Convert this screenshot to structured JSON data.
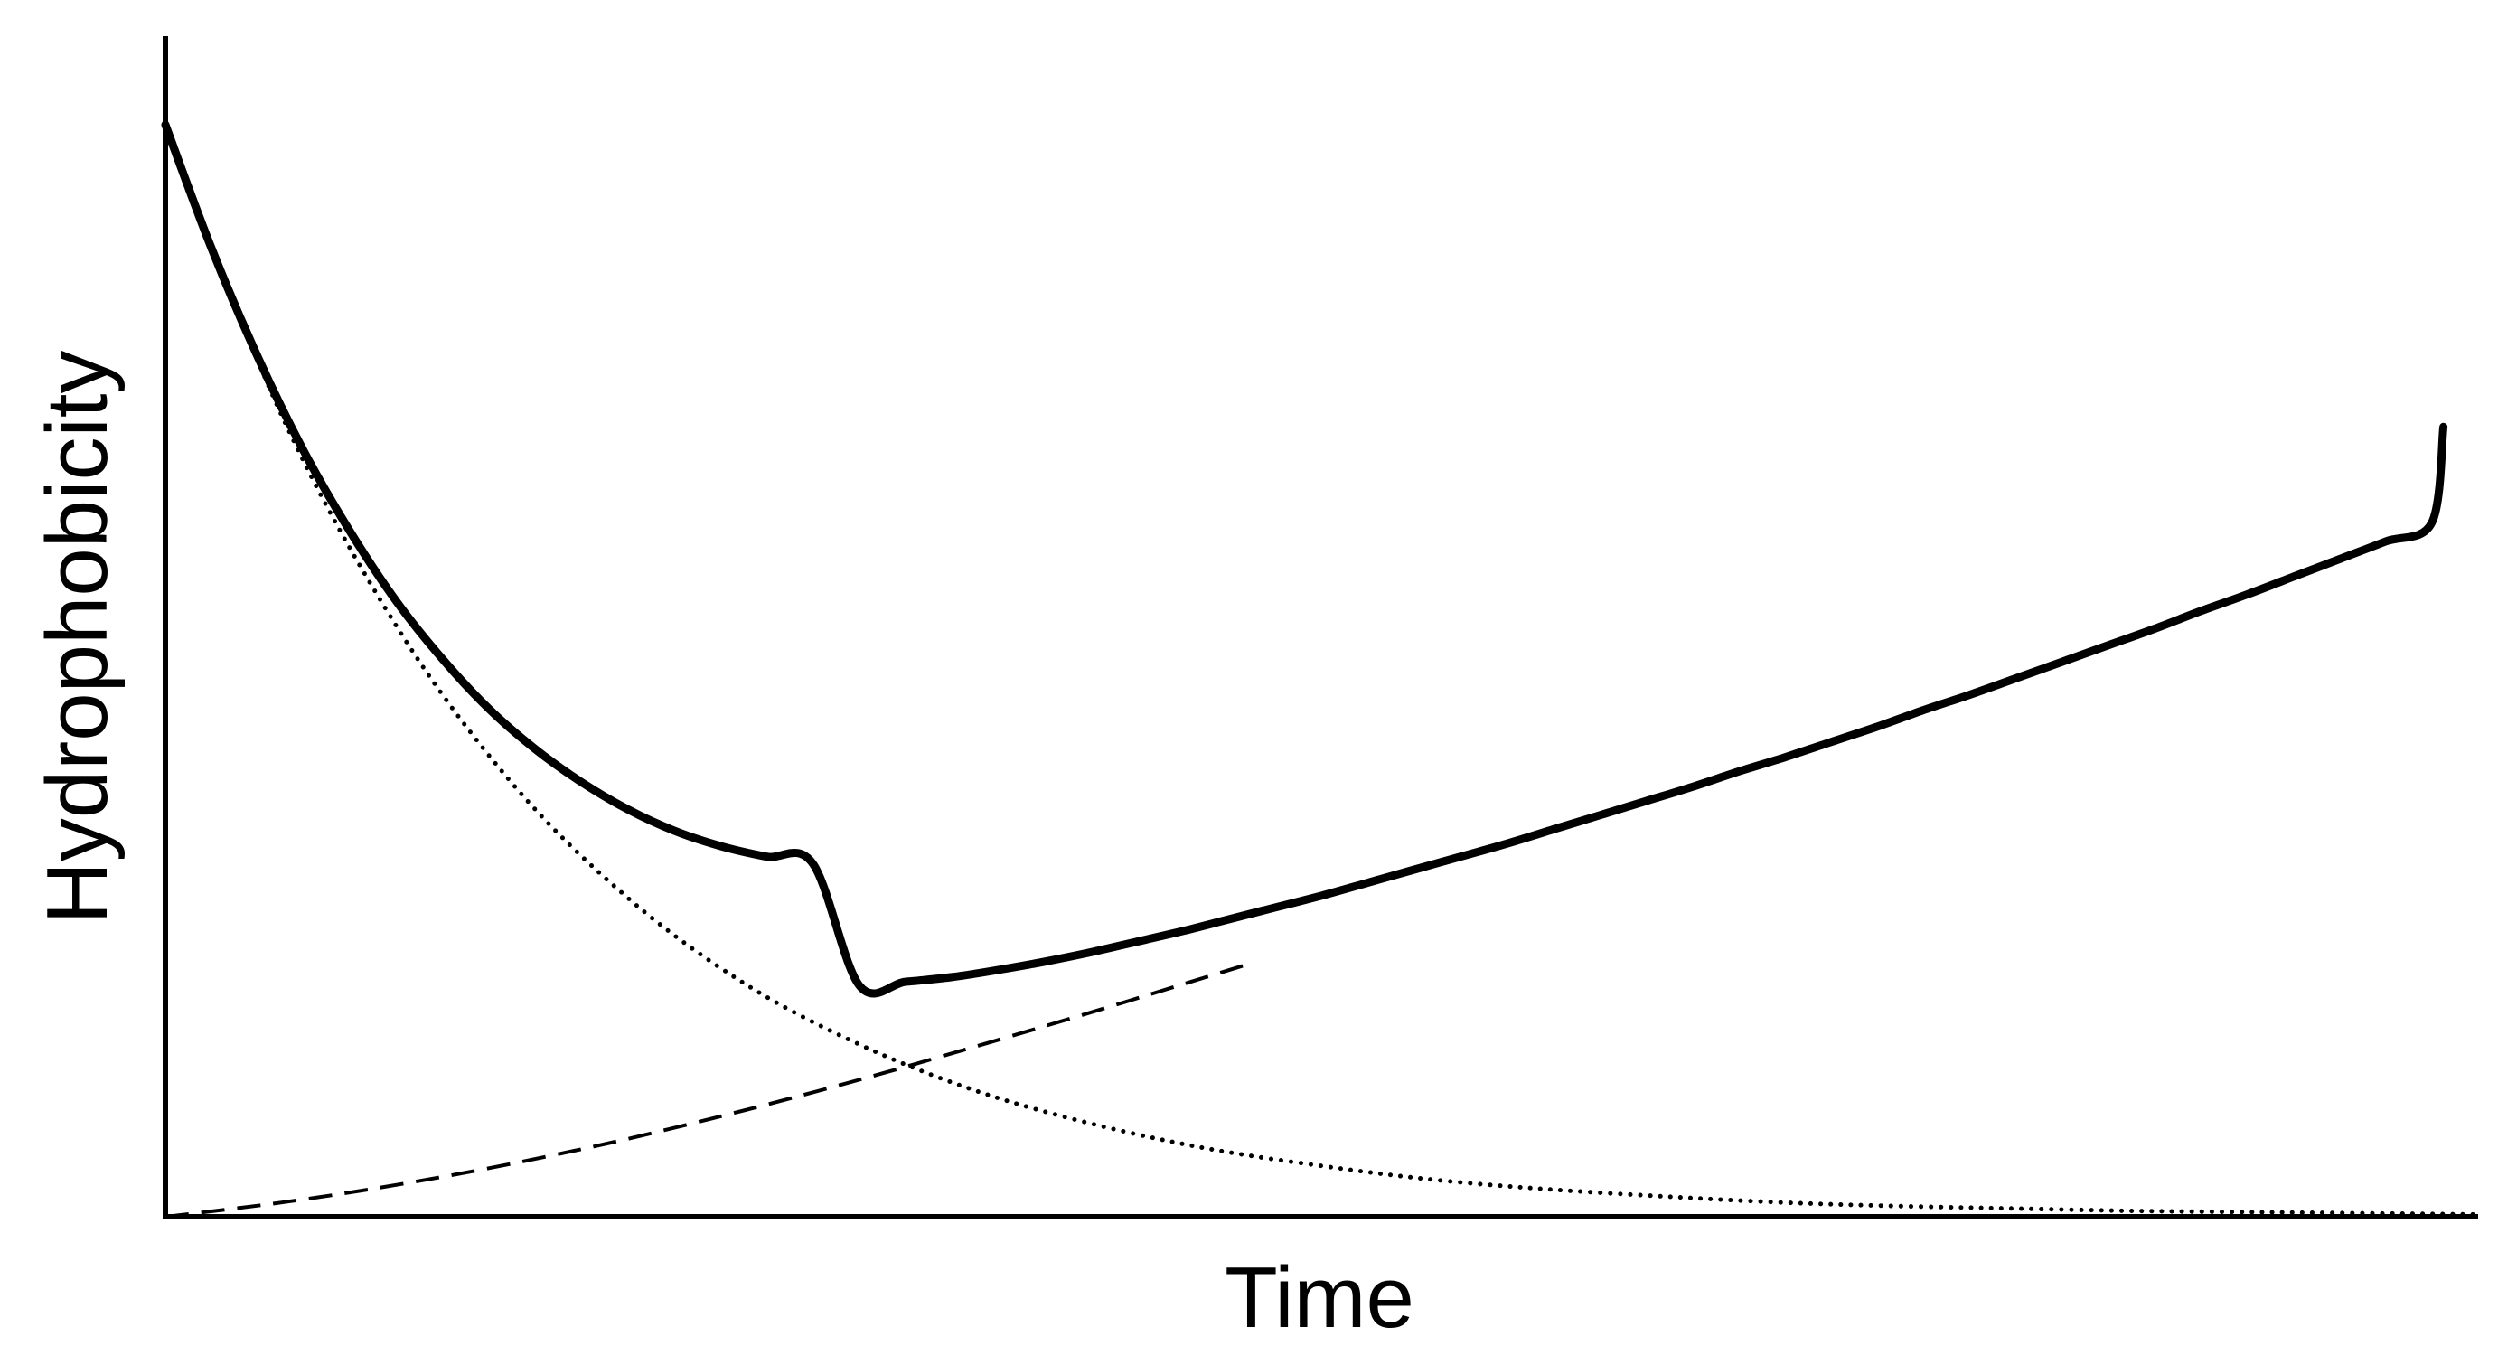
{
  "chart_data": {
    "type": "line",
    "title": "",
    "xlabel": "Time",
    "ylabel": "Hydrophobicity",
    "xlim": [
      0,
      1
    ],
    "ylim": [
      0,
      1
    ],
    "x_ticks_shown": false,
    "y_ticks_shown": false,
    "grid": false,
    "legend": "none",
    "colors": {
      "axes": "#000000",
      "lines": "#000000"
    },
    "series": [
      {
        "style": "solid",
        "x": [
          0.0,
          0.02,
          0.04,
          0.06,
          0.08,
          0.1,
          0.12,
          0.14,
          0.16,
          0.18,
          0.2,
          0.22,
          0.24,
          0.26,
          0.28,
          0.3,
          0.32,
          0.34,
          0.36,
          0.38,
          0.4,
          0.42,
          0.44,
          0.46,
          0.48,
          0.5,
          0.52,
          0.54,
          0.56,
          0.58,
          0.6,
          0.62,
          0.64,
          0.66,
          0.68,
          0.7,
          0.72,
          0.74,
          0.76,
          0.78,
          0.8,
          0.82,
          0.84,
          0.86,
          0.88,
          0.9,
          0.92,
          0.94,
          0.96,
          0.98,
          0.985
        ],
        "y": [
          0.925,
          0.82,
          0.728,
          0.648,
          0.58,
          0.521,
          0.472,
          0.43,
          0.396,
          0.368,
          0.345,
          0.327,
          0.314,
          0.305,
          0.299,
          0.196,
          0.199,
          0.203,
          0.209,
          0.216,
          0.224,
          0.233,
          0.242,
          0.252,
          0.262,
          0.272,
          0.283,
          0.294,
          0.305,
          0.316,
          0.328,
          0.34,
          0.352,
          0.364,
          0.377,
          0.389,
          0.402,
          0.415,
          0.429,
          0.442,
          0.456,
          0.47,
          0.484,
          0.498,
          0.513,
          0.527,
          0.542,
          0.557,
          0.572,
          0.588,
          0.669
        ]
      },
      {
        "style": "dotted",
        "x": [
          0.0,
          0.05,
          0.1,
          0.15,
          0.2,
          0.25,
          0.3,
          0.35,
          0.4,
          0.45,
          0.5,
          0.55,
          0.6,
          0.65,
          0.7,
          0.75,
          0.8,
          0.85,
          0.9,
          0.95,
          1.0
        ],
        "y": [
          0.925,
          0.68,
          0.5,
          0.367,
          0.27,
          0.198,
          0.146,
          0.107,
          0.079,
          0.058,
          0.043,
          0.031,
          0.023,
          0.017,
          0.012,
          0.009,
          0.007,
          0.005,
          0.004,
          0.003,
          0.002
        ]
      },
      {
        "style": "dashed",
        "x": [
          0.0,
          0.05,
          0.1,
          0.15,
          0.2,
          0.25,
          0.3,
          0.35,
          0.4,
          0.45,
          0.47
        ],
        "y": [
          0.0,
          0.012,
          0.027,
          0.045,
          0.066,
          0.09,
          0.116,
          0.144,
          0.173,
          0.203,
          0.215
        ]
      }
    ]
  }
}
